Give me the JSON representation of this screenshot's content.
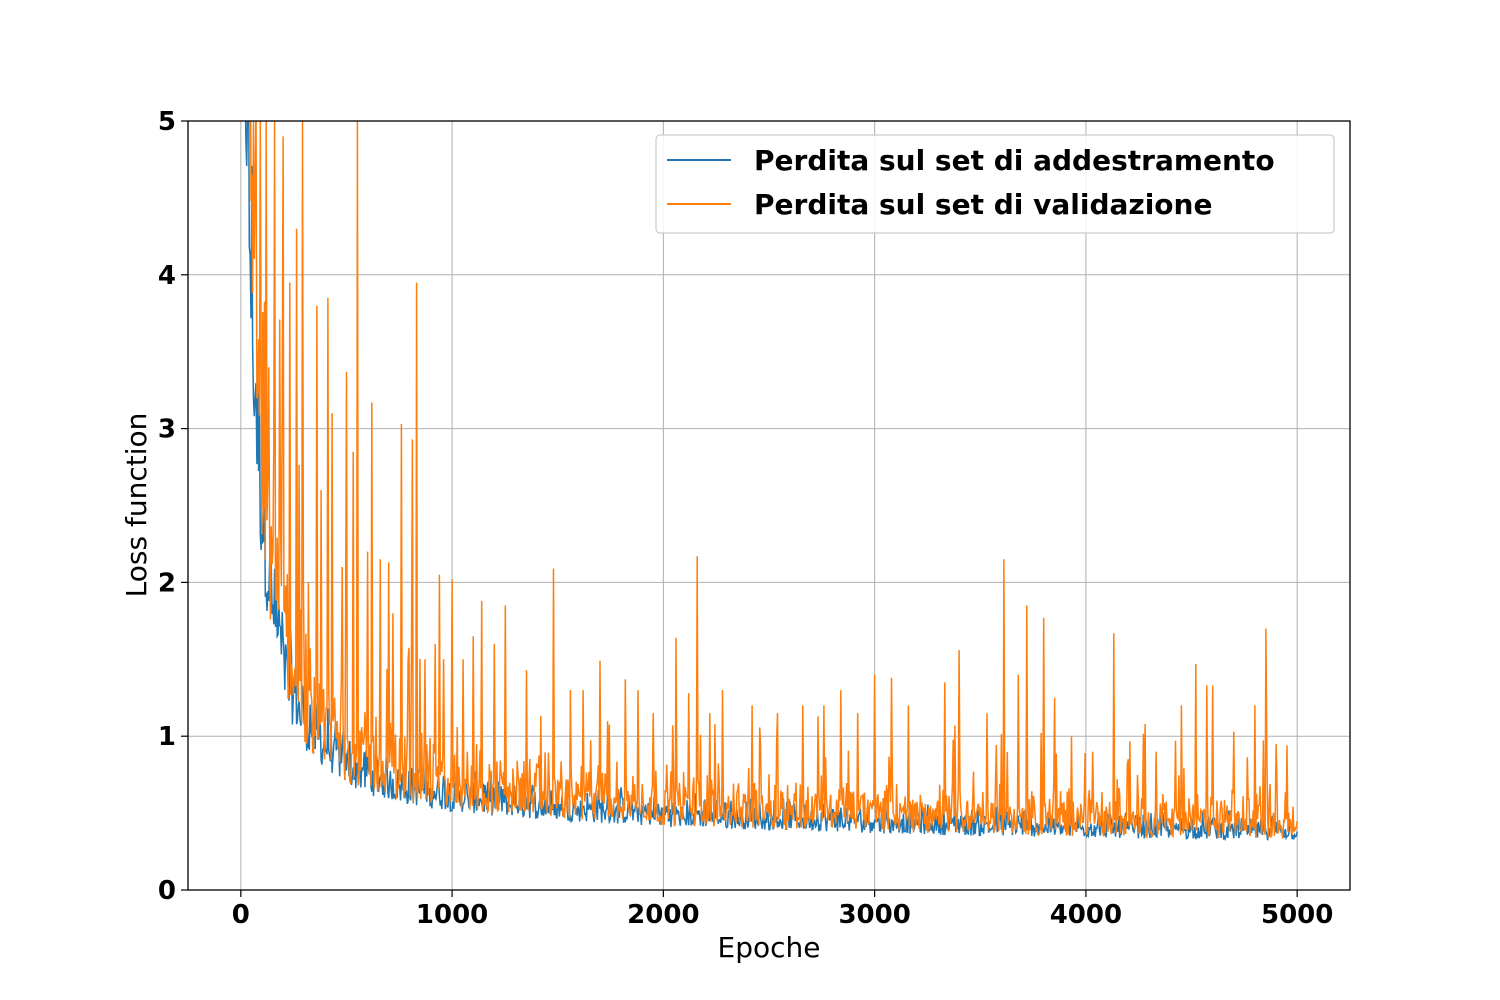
{
  "chart_data": {
    "type": "line",
    "title": "",
    "xlabel": "Epoche",
    "ylabel": "Loss function",
    "xlim": [
      -250,
      5250
    ],
    "ylim": [
      0,
      5
    ],
    "xticks": [
      0,
      1000,
      2000,
      3000,
      4000,
      5000
    ],
    "xtick_labels": [
      "0",
      "1000",
      "2000",
      "3000",
      "4000",
      "5000"
    ],
    "yticks": [
      0,
      1,
      2,
      3,
      4,
      5
    ],
    "ytick_labels": [
      "0",
      "1",
      "2",
      "3",
      "4",
      "5"
    ],
    "grid": true,
    "legend_position": "top-right",
    "series": [
      {
        "name": "Perdita sul set di addestramento",
        "color": "#1f77b4",
        "x": [
          0,
          25,
          50,
          75,
          100,
          150,
          200,
          250,
          300,
          400,
          500,
          600,
          700,
          800,
          1000,
          1200,
          1500,
          2000,
          2500,
          3000,
          3500,
          4000,
          4500,
          5000
        ],
        "values": [
          5.0,
          4.4,
          3.2,
          2.5,
          2.05,
          1.55,
          1.25,
          1.05,
          0.92,
          0.78,
          0.68,
          0.62,
          0.58,
          0.55,
          0.51,
          0.48,
          0.45,
          0.41,
          0.39,
          0.37,
          0.35,
          0.34,
          0.33,
          0.32
        ]
      },
      {
        "name": "Perdita sul set di validazione",
        "color": "#ff7f0e",
        "x": [
          0,
          25,
          50,
          75,
          100,
          150,
          200,
          250,
          300,
          400,
          500,
          600,
          700,
          800,
          1000,
          1200,
          1500,
          2000,
          2500,
          3000,
          3500,
          4000,
          4500,
          5000
        ],
        "values": [
          5.0,
          4.6,
          3.4,
          2.6,
          2.1,
          1.6,
          1.3,
          1.1,
          0.95,
          0.8,
          0.7,
          0.64,
          0.6,
          0.56,
          0.52,
          0.49,
          0.46,
          0.42,
          0.4,
          0.38,
          0.36,
          0.35,
          0.34,
          0.33
        ],
        "spikes": [
          [
            30,
            5.0
          ],
          [
            60,
            5.0
          ],
          [
            90,
            5.0
          ],
          [
            120,
            5.0
          ],
          [
            160,
            5.0
          ],
          [
            200,
            4.9
          ],
          [
            230,
            3.95
          ],
          [
            265,
            4.3
          ],
          [
            290,
            5.0
          ],
          [
            320,
            2.0
          ],
          [
            360,
            3.8
          ],
          [
            380,
            2.6
          ],
          [
            410,
            3.85
          ],
          [
            430,
            3.1
          ],
          [
            480,
            2.1
          ],
          [
            500,
            3.37
          ],
          [
            530,
            2.85
          ],
          [
            550,
            5.0
          ],
          [
            600,
            2.2
          ],
          [
            620,
            3.17
          ],
          [
            660,
            2.15
          ],
          [
            700,
            2.13
          ],
          [
            720,
            1.8
          ],
          [
            760,
            3.03
          ],
          [
            790,
            1.5
          ],
          [
            810,
            2.93
          ],
          [
            830,
            3.95
          ],
          [
            870,
            1.5
          ],
          [
            920,
            1.6
          ],
          [
            940,
            2.05
          ],
          [
            960,
            1.5
          ],
          [
            1000,
            2.02
          ],
          [
            1050,
            1.5
          ],
          [
            1100,
            1.65
          ],
          [
            1140,
            1.88
          ],
          [
            1200,
            1.6
          ],
          [
            1250,
            1.85
          ],
          [
            1350,
            1.43
          ],
          [
            1480,
            2.09
          ],
          [
            1560,
            1.3
          ],
          [
            1620,
            1.3
          ],
          [
            1700,
            1.49
          ],
          [
            1820,
            1.37
          ],
          [
            1880,
            1.3
          ],
          [
            1950,
            1.15
          ],
          [
            2060,
            1.64
          ],
          [
            2120,
            1.28
          ],
          [
            2160,
            2.17
          ],
          [
            2220,
            1.15
          ],
          [
            2280,
            1.3
          ],
          [
            2420,
            1.2
          ],
          [
            2540,
            1.15
          ],
          [
            2660,
            1.2
          ],
          [
            2760,
            1.2
          ],
          [
            2840,
            1.3
          ],
          [
            2920,
            1.15
          ],
          [
            3000,
            1.4
          ],
          [
            3080,
            1.38
          ],
          [
            3160,
            1.2
          ],
          [
            3330,
            1.35
          ],
          [
            3400,
            1.56
          ],
          [
            3530,
            1.15
          ],
          [
            3610,
            2.15
          ],
          [
            3680,
            1.4
          ],
          [
            3720,
            1.85
          ],
          [
            3800,
            1.77
          ],
          [
            3850,
            1.25
          ],
          [
            3930,
            1.0
          ],
          [
            4030,
            0.9
          ],
          [
            4130,
            1.67
          ],
          [
            4200,
            0.85
          ],
          [
            4280,
            1.08
          ],
          [
            4330,
            0.9
          ],
          [
            4450,
            1.2
          ],
          [
            4520,
            1.47
          ],
          [
            4570,
            1.33
          ],
          [
            4600,
            1.33
          ],
          [
            4700,
            1.03
          ],
          [
            4800,
            1.2
          ],
          [
            4850,
            1.7
          ],
          [
            4900,
            0.95
          ],
          [
            4950,
            0.94
          ]
        ]
      }
    ]
  }
}
